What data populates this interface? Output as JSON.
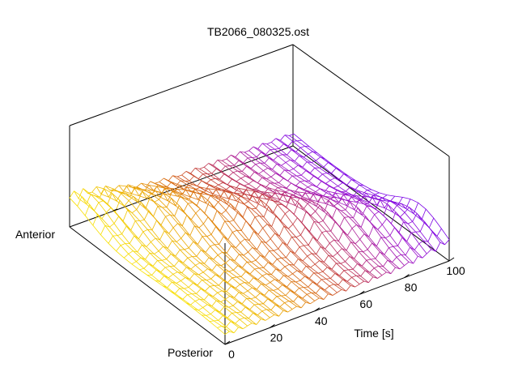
{
  "chart_data": {
    "type": "surface",
    "title": "TB2066_080325.ost",
    "xlabel": "Time [s]",
    "y_axis_labels": {
      "near": "Posterior",
      "far": "Anterior"
    },
    "x_ticks": [
      "0",
      "20",
      "40",
      "60",
      "80",
      "100"
    ],
    "xlim": [
      0,
      100
    ],
    "y_lines": 21,
    "x_lines": 50,
    "surface": {
      "description": "mesh of 21 longitudinal lines from posterior to anterior; a traveling wave crest moves from anterior toward posterior over time",
      "base_level": 0.1,
      "amplitude": 0.2,
      "crest_speed": 0.0083,
      "wave_width": 0.22,
      "periodic_ripple_amp": 0.05,
      "periodic_ripple_period_s": 5
    },
    "colors": {
      "palette": [
        "#7a00e6",
        "#9a10cc",
        "#b0208c",
        "#c23a3a",
        "#d86a10",
        "#e89a00",
        "#f0c000",
        "#f8e000"
      ],
      "axis": "#000000",
      "background": "#ffffff"
    },
    "grid": false,
    "legend": "none"
  }
}
